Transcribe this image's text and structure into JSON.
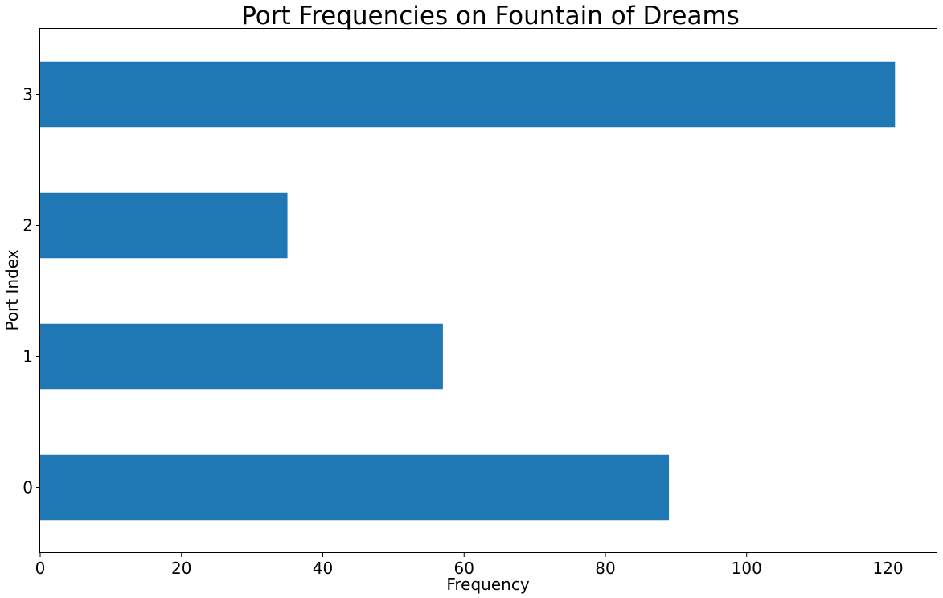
{
  "chart_data": {
    "type": "bar",
    "orientation": "horizontal",
    "title": "Port Frequencies on Fountain of Dreams",
    "xlabel": "Frequency",
    "ylabel": "Port Index",
    "categories": [
      "0",
      "1",
      "2",
      "3"
    ],
    "values": [
      89,
      57,
      35,
      121
    ],
    "xlim": [
      0,
      127
    ],
    "xticks": [
      0,
      20,
      40,
      60,
      80,
      100,
      120
    ],
    "xtick_labels": [
      "0",
      "20",
      "40",
      "60",
      "80",
      "100",
      "120"
    ],
    "grid": false,
    "legend": "none",
    "bar_color": "#1f77b4"
  }
}
